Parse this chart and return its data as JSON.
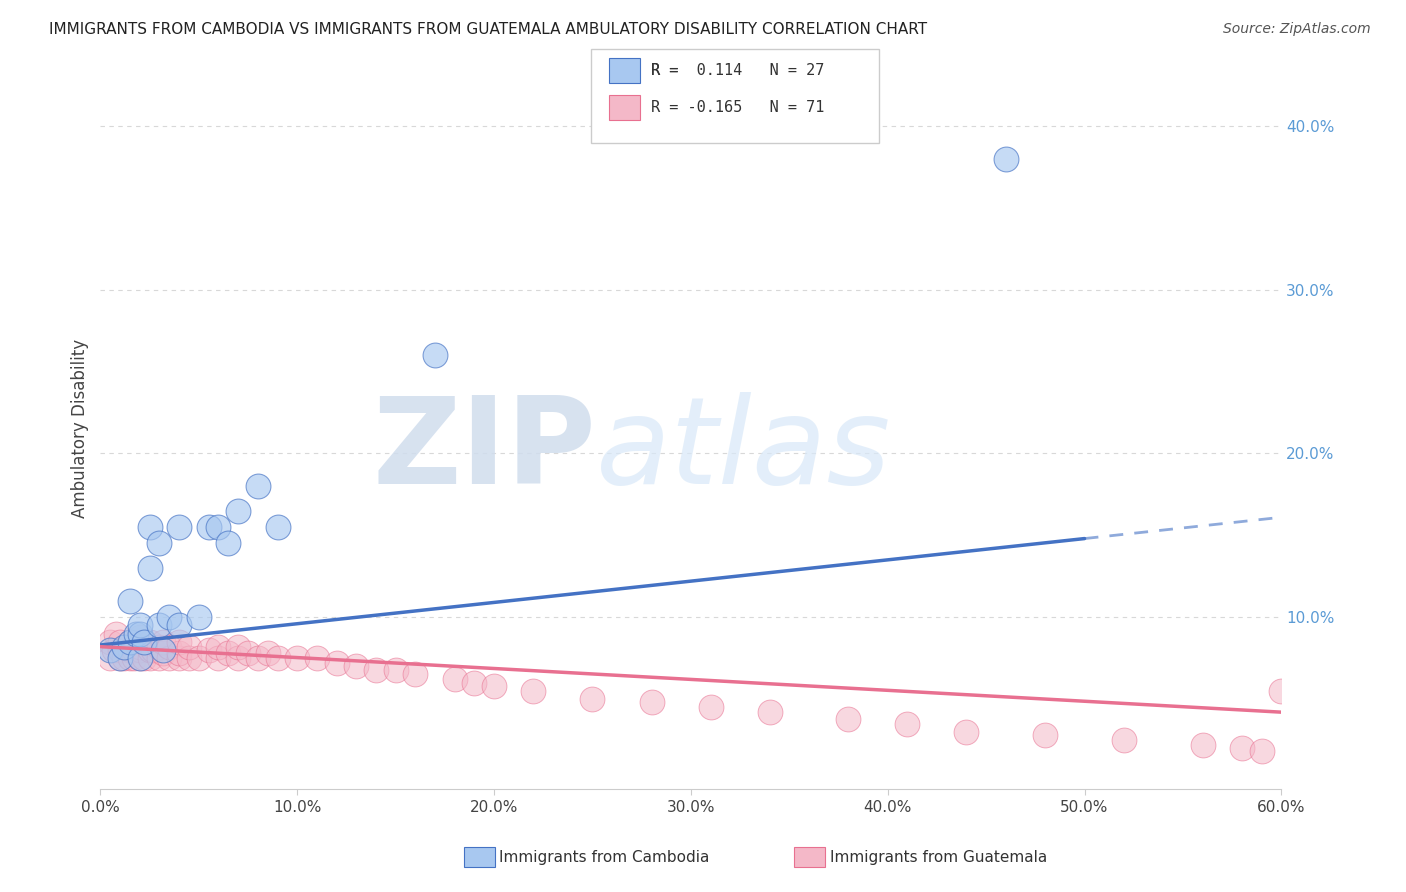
{
  "title": "IMMIGRANTS FROM CAMBODIA VS IMMIGRANTS FROM GUATEMALA AMBULATORY DISABILITY CORRELATION CHART",
  "source": "Source: ZipAtlas.com",
  "ylabel": "Ambulatory Disability",
  "xlim": [
    0.0,
    0.6
  ],
  "ylim": [
    -0.005,
    0.435
  ],
  "xticks": [
    0.0,
    0.1,
    0.2,
    0.3,
    0.4,
    0.5,
    0.6
  ],
  "xticklabels": [
    "0.0%",
    "10.0%",
    "20.0%",
    "30.0%",
    "40.0%",
    "50.0%",
    "60.0%"
  ],
  "yticks_right": [
    0.0,
    0.1,
    0.2,
    0.3,
    0.4
  ],
  "yticklabels_right": [
    "",
    "10.0%",
    "20.0%",
    "30.0%",
    "40.0%"
  ],
  "color_cambodia": "#a8c8f0",
  "color_guatemala": "#f4b8c8",
  "color_trend_cambodia": "#4472c4",
  "color_trend_guatemala": "#e87090",
  "watermark_zip": "ZIP",
  "watermark_atlas": "atlas",
  "background_color": "#ffffff",
  "grid_color": "#d8d8d8",
  "cambodia_x": [
    0.005,
    0.01,
    0.012,
    0.015,
    0.015,
    0.018,
    0.02,
    0.02,
    0.02,
    0.022,
    0.025,
    0.025,
    0.03,
    0.03,
    0.032,
    0.035,
    0.04,
    0.04,
    0.05,
    0.055,
    0.06,
    0.065,
    0.07,
    0.08,
    0.09,
    0.17,
    0.46
  ],
  "cambodia_y": [
    0.08,
    0.075,
    0.082,
    0.085,
    0.11,
    0.09,
    0.075,
    0.09,
    0.095,
    0.085,
    0.13,
    0.155,
    0.095,
    0.145,
    0.08,
    0.1,
    0.095,
    0.155,
    0.1,
    0.155,
    0.155,
    0.145,
    0.165,
    0.18,
    0.155,
    0.26,
    0.38
  ],
  "guatemala_x": [
    0.005,
    0.005,
    0.007,
    0.008,
    0.01,
    0.01,
    0.01,
    0.012,
    0.013,
    0.015,
    0.015,
    0.015,
    0.017,
    0.017,
    0.018,
    0.02,
    0.02,
    0.02,
    0.02,
    0.022,
    0.022,
    0.025,
    0.025,
    0.025,
    0.027,
    0.03,
    0.03,
    0.032,
    0.032,
    0.035,
    0.035,
    0.04,
    0.04,
    0.04,
    0.045,
    0.045,
    0.05,
    0.055,
    0.06,
    0.06,
    0.065,
    0.07,
    0.07,
    0.075,
    0.08,
    0.085,
    0.09,
    0.1,
    0.11,
    0.12,
    0.13,
    0.14,
    0.15,
    0.16,
    0.18,
    0.19,
    0.2,
    0.22,
    0.25,
    0.28,
    0.31,
    0.34,
    0.38,
    0.41,
    0.44,
    0.48,
    0.52,
    0.56,
    0.58,
    0.59,
    0.6
  ],
  "guatemala_y": [
    0.075,
    0.085,
    0.08,
    0.09,
    0.075,
    0.08,
    0.085,
    0.075,
    0.082,
    0.075,
    0.08,
    0.085,
    0.075,
    0.08,
    0.085,
    0.075,
    0.08,
    0.082,
    0.088,
    0.075,
    0.085,
    0.075,
    0.08,
    0.085,
    0.08,
    0.075,
    0.082,
    0.078,
    0.085,
    0.075,
    0.082,
    0.075,
    0.078,
    0.085,
    0.075,
    0.082,
    0.075,
    0.08,
    0.075,
    0.082,
    0.078,
    0.075,
    0.082,
    0.078,
    0.075,
    0.078,
    0.075,
    0.075,
    0.075,
    0.072,
    0.07,
    0.068,
    0.068,
    0.065,
    0.062,
    0.06,
    0.058,
    0.055,
    0.05,
    0.048,
    0.045,
    0.042,
    0.038,
    0.035,
    0.03,
    0.028,
    0.025,
    0.022,
    0.02,
    0.018,
    0.055
  ],
  "trend_camb_x0": 0.0,
  "trend_camb_y0": 0.083,
  "trend_camb_x1": 0.5,
  "trend_camb_y1": 0.148,
  "trend_camb_dash_x0": 0.5,
  "trend_camb_dash_y0": 0.148,
  "trend_camb_dash_x1": 0.6,
  "trend_camb_dash_y1": 0.161,
  "trend_guat_x0": 0.0,
  "trend_guat_y0": 0.082,
  "trend_guat_x1": 0.6,
  "trend_guat_y1": 0.042
}
